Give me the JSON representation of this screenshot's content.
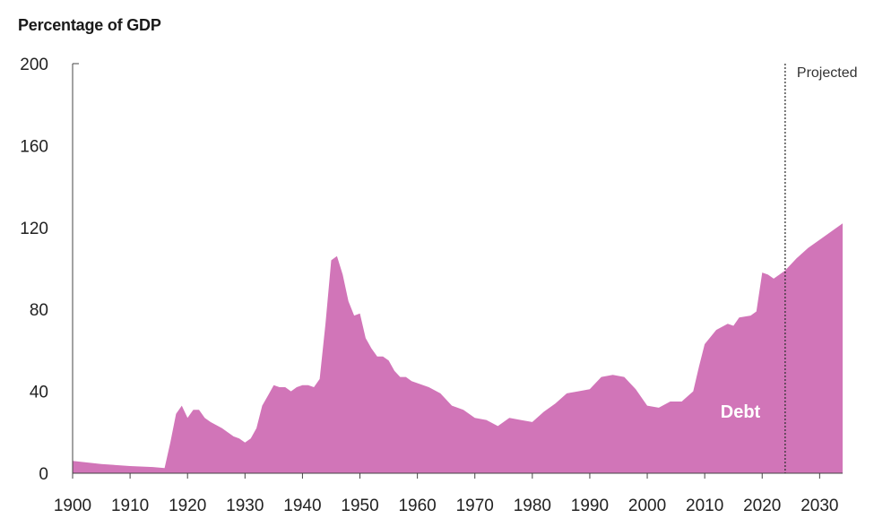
{
  "chart_data": {
    "type": "area",
    "ylabel": "Percentage of GDP",
    "xlabel": "",
    "ylim": [
      0,
      200
    ],
    "xlim": [
      1900,
      2034
    ],
    "y_ticks": [
      0,
      40,
      80,
      120,
      160,
      200
    ],
    "x_ticks": [
      1900,
      1910,
      1920,
      1930,
      1940,
      1950,
      1960,
      1970,
      1980,
      1990,
      2000,
      2010,
      2020,
      2030
    ],
    "projection_marker": {
      "year": 2024,
      "label": "Projected"
    },
    "series": [
      {
        "name": "Debt",
        "color": "#d175b8",
        "x": [
          1900,
          1905,
          1910,
          1914,
          1916,
          1917,
          1918,
          1919,
          1920,
          1921,
          1922,
          1923,
          1924,
          1926,
          1928,
          1929,
          1930,
          1931,
          1932,
          1933,
          1934,
          1935,
          1936,
          1937,
          1938,
          1939,
          1940,
          1941,
          1942,
          1943,
          1944,
          1945,
          1946,
          1947,
          1948,
          1949,
          1950,
          1951,
          1952,
          1953,
          1954,
          1955,
          1956,
          1957,
          1958,
          1959,
          1960,
          1962,
          1964,
          1966,
          1968,
          1970,
          1972,
          1974,
          1976,
          1978,
          1980,
          1982,
          1984,
          1986,
          1988,
          1990,
          1992,
          1994,
          1996,
          1998,
          2000,
          2002,
          2004,
          2006,
          2008,
          2009,
          2010,
          2012,
          2014,
          2015,
          2016,
          2018,
          2019,
          2020,
          2021,
          2022,
          2023,
          2024,
          2026,
          2028,
          2030,
          2032,
          2034
        ],
        "values": [
          6,
          4.5,
          3.5,
          3,
          2.5,
          15,
          29,
          33,
          27,
          31,
          31,
          27,
          25,
          22,
          18,
          17,
          15,
          17,
          22,
          33,
          38,
          43,
          42,
          42,
          40,
          42,
          43,
          43,
          42,
          46,
          73,
          104,
          106,
          97,
          84,
          77,
          78,
          66,
          61,
          57,
          57,
          55,
          50,
          47,
          47,
          45,
          44,
          42,
          39,
          33,
          31,
          27,
          26,
          23,
          27,
          26,
          25,
          30,
          34,
          39,
          40,
          41,
          47,
          48,
          47,
          41,
          33,
          32,
          35,
          35,
          40,
          52,
          63,
          70,
          73,
          72,
          76,
          77,
          79,
          98,
          97,
          95,
          97,
          99,
          105,
          110,
          114,
          118,
          122
        ]
      }
    ]
  }
}
